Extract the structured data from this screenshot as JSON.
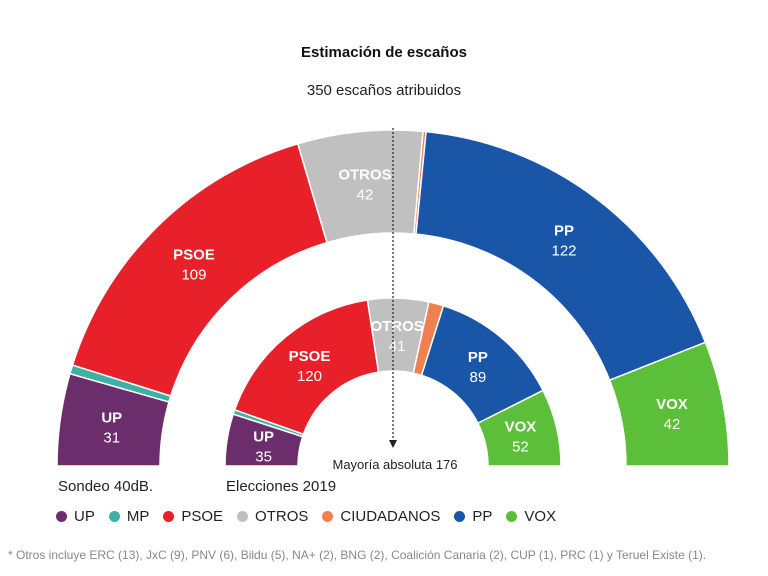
{
  "chart_data": {
    "type": "parliament-semicircle",
    "title": "Estimación de escaños",
    "subtitle": "350 escaños atribuidos",
    "total_seats": 350,
    "majority_label": "Mayoría absoluta 176",
    "majority_seats": 176,
    "parties": [
      {
        "key": "UP",
        "name": "UP",
        "color": "#6b2d6b"
      },
      {
        "key": "MP",
        "name": "MP",
        "color": "#3fb0a5"
      },
      {
        "key": "PSOE",
        "name": "PSOE",
        "color": "#e8202a"
      },
      {
        "key": "OTROS",
        "name": "OTROS",
        "color": "#c0c0c0"
      },
      {
        "key": "CS",
        "name": "CIUDADANOS",
        "color": "#f08050"
      },
      {
        "key": "PP",
        "name": "PP",
        "color": "#1a56a8"
      },
      {
        "key": "VOX",
        "name": "VOX",
        "color": "#5cbf3a"
      }
    ],
    "series": [
      {
        "name": "Sondeo 40dB.",
        "seats": [
          {
            "party": "UP",
            "value": 31,
            "label": "UP"
          },
          {
            "party": "MP",
            "value": 3
          },
          {
            "party": "PSOE",
            "value": 109,
            "label": "PSOE"
          },
          {
            "party": "OTROS",
            "value": 42,
            "label": "OTROS"
          },
          {
            "party": "CS",
            "value": 1
          },
          {
            "party": "PP",
            "value": 122,
            "label": "PP"
          },
          {
            "party": "VOX",
            "value": 42,
            "label": "VOX"
          }
        ]
      },
      {
        "name": "Elecciones 2019",
        "seats": [
          {
            "party": "UP",
            "value": 35,
            "label": "UP"
          },
          {
            "party": "MP",
            "value": 3
          },
          {
            "party": "PSOE",
            "value": 120,
            "label": "PSOE"
          },
          {
            "party": "OTROS",
            "value": 41,
            "label": "OTROS"
          },
          {
            "party": "CS",
            "value": 10
          },
          {
            "party": "PP",
            "value": 89,
            "label": "PP"
          },
          {
            "party": "VOX",
            "value": 52,
            "label": "VOX"
          }
        ]
      }
    ]
  },
  "footnote": "* Otros incluye ERC (13), JxC (9), PNV (6), Bildu (5), NA+ (2), BNG (2), Coalición Canaria (2), CUP (1), PRC (1) y Teruel Existe (1)."
}
